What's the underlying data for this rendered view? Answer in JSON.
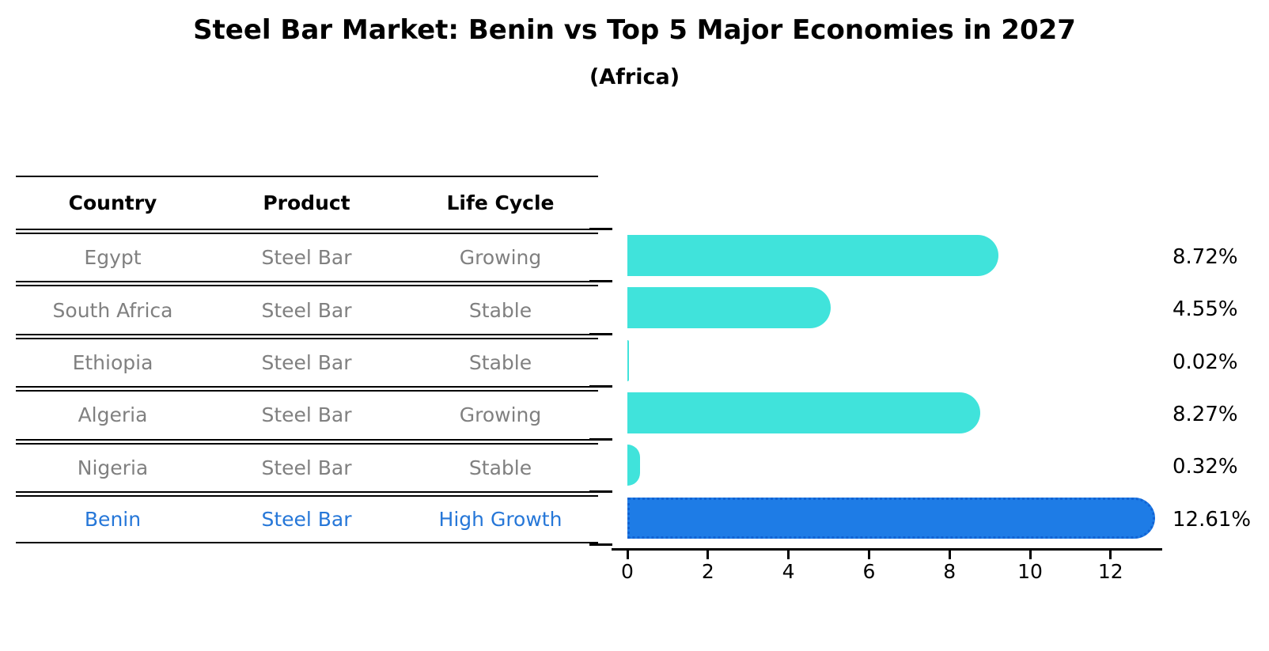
{
  "title": "Steel Bar Market: Benin vs Top 5 Major Economies in 2027",
  "subtitle": "(Africa)",
  "table": {
    "headers": [
      "Country",
      "Product",
      "Life Cycle"
    ],
    "rows": [
      {
        "country": "Egypt",
        "product": "Steel Bar",
        "life_cycle": "Growing",
        "highlight": false
      },
      {
        "country": "South Africa",
        "product": "Steel Bar",
        "life_cycle": "Stable",
        "highlight": false
      },
      {
        "country": "Ethiopia",
        "product": "Steel Bar",
        "life_cycle": "Stable",
        "highlight": false
      },
      {
        "country": "Algeria",
        "product": "Steel Bar",
        "life_cycle": "Growing",
        "highlight": false
      },
      {
        "country": "Nigeria",
        "product": "Steel Bar",
        "life_cycle": "Stable",
        "highlight": false
      },
      {
        "country": "Benin",
        "product": "Steel Bar",
        "life_cycle": "High Growth",
        "highlight": true
      }
    ]
  },
  "chart_data": {
    "type": "bar",
    "orientation": "horizontal",
    "categories": [
      "Egypt",
      "South Africa",
      "Ethiopia",
      "Algeria",
      "Nigeria",
      "Benin"
    ],
    "values": [
      8.72,
      4.55,
      0.02,
      8.27,
      0.32,
      12.61
    ],
    "value_labels": [
      "8.72%",
      "4.55%",
      "0.02%",
      "8.27%",
      "0.32%",
      "12.61%"
    ],
    "highlight_index": 5,
    "x_ticks": [
      "0",
      "2",
      "4",
      "6",
      "8",
      "10",
      "12"
    ],
    "x_tick_values": [
      0,
      2,
      4,
      6,
      8,
      10,
      12
    ],
    "xlim": [
      0,
      13.3
    ],
    "grid": false,
    "legend": null,
    "title": "Steel Bar Market: Benin vs Top 5 Major Economies in 2027",
    "xlabel": "",
    "ylabel": ""
  },
  "colors": {
    "bar": "#40E3DB",
    "highlight_bar": "#1E7CE6",
    "highlight_border": "#1263d4",
    "highlight_text": "#2677D8",
    "muted_text": "#808080",
    "text": "#000000"
  }
}
